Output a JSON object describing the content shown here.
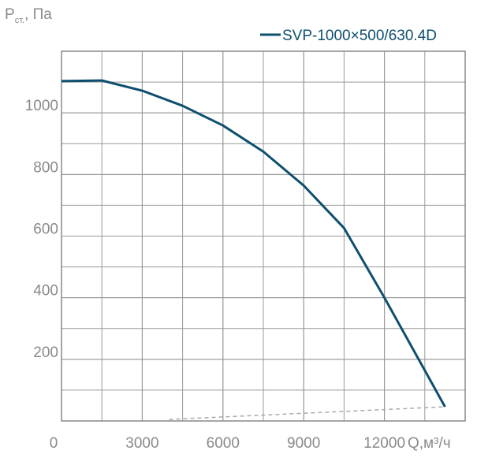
{
  "chart_data": {
    "type": "line",
    "y_label": {
      "main": "P",
      "sub": "ст.",
      "unit": ", Па"
    },
    "x_label": "Q,м³/ч",
    "xlim": [
      0,
      15000
    ],
    "xticks": [
      0,
      3000,
      6000,
      9000,
      12000
    ],
    "ylim": [
      0,
      1200
    ],
    "yticks": [
      200,
      400,
      600,
      800,
      1000
    ],
    "grid": true,
    "legend": "top-right",
    "series": [
      {
        "name": "SVP-1000×500/630.4D",
        "color": "#0d4f6e",
        "x": [
          0,
          1500,
          3000,
          4500,
          6000,
          7500,
          9000,
          10500,
          12000,
          13500,
          14250
        ],
        "values": [
          1103,
          1105,
          1072,
          1023,
          959,
          874,
          764,
          626,
          400,
          164,
          46
        ]
      }
    ],
    "system_line": {
      "color": "#aaaaaa",
      "x": [
        4000,
        14250
      ],
      "values": [
        5,
        46
      ]
    }
  }
}
